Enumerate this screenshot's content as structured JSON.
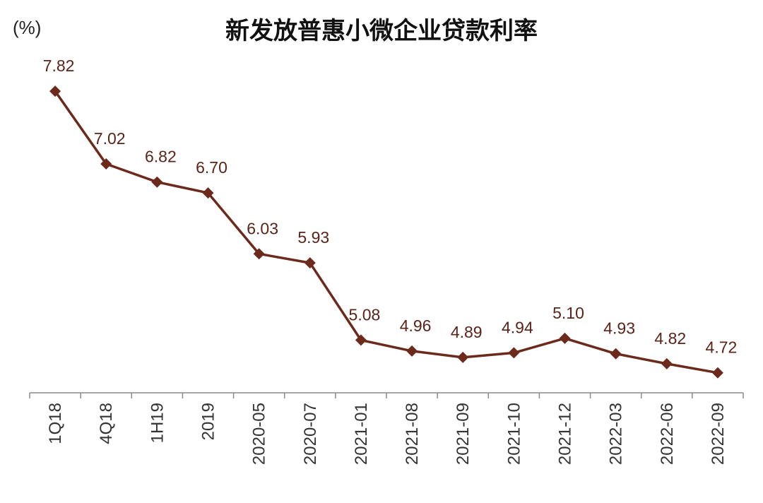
{
  "y_unit_label": "(%)",
  "chart_data": {
    "type": "line",
    "title": "新发放普惠小微企业贷款利率",
    "xlabel": "",
    "ylabel": "",
    "x": [
      "1Q18",
      "4Q18",
      "1H19",
      "2019",
      "2020-05",
      "2020-07",
      "2021-01",
      "2021-08",
      "2021-09",
      "2021-10",
      "2021-12",
      "2022-03",
      "2022-06",
      "2022-09"
    ],
    "series": [
      {
        "values": [
          7.82,
          7.02,
          6.82,
          6.7,
          6.03,
          5.93,
          5.08,
          4.96,
          4.89,
          4.94,
          5.1,
          4.93,
          4.82,
          4.72
        ],
        "labels": [
          "7.82",
          "7.02",
          "6.82",
          "6.70",
          "6.03",
          "5.93",
          "5.08",
          "4.96",
          "4.89",
          "4.94",
          "5.10",
          "4.93",
          "4.82",
          "4.72"
        ],
        "color": "#6b2a1b"
      }
    ],
    "ylim": [
      4.5,
      8.0
    ],
    "grid": false,
    "legend": "none",
    "marker": "diamond"
  }
}
